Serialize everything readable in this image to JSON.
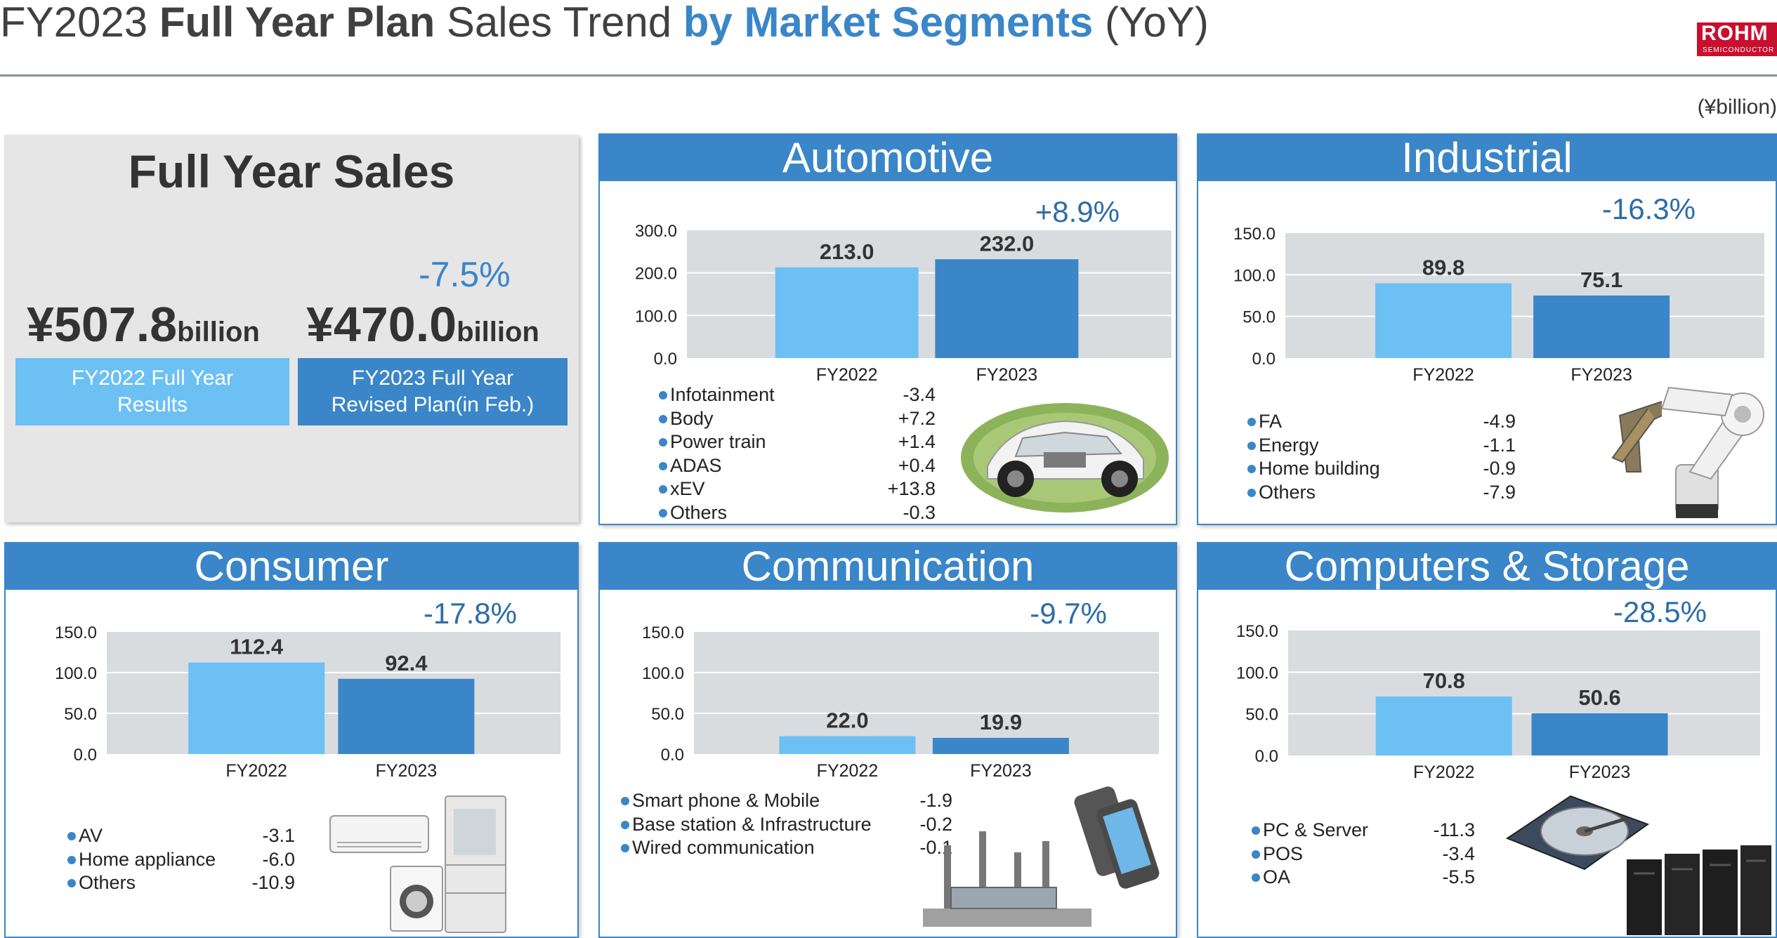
{
  "header": {
    "title_parts": [
      "FY2023 ",
      "Full Year Plan",
      " Sales Trend ",
      "by Market Segments",
      " (YoY)"
    ],
    "logo_line1": "ROHM",
    "logo_line2": "SEMICONDUCTOR"
  },
  "unit": "(¥billion)",
  "full_year": {
    "heading": "Full Year Sales",
    "yoy": "-7.5%",
    "fy2022_value": "¥507.8",
    "fy2023_value": "¥470.0",
    "value_unit": "billion",
    "fy2022_label": [
      "FY2022 Full Year",
      "Results"
    ],
    "fy2023_label": [
      "FY2023 Full Year",
      "Revised Plan(in Feb.)"
    ],
    "colors": {
      "fy2022": "#6cc0f4",
      "fy2023": "#3a86c8"
    }
  },
  "colors": {
    "fy2022": "#6cc0f4",
    "fy2023": "#3a86c8",
    "plot_bg": "#d9dcdf",
    "grid": "#ffffff"
  },
  "chart_data": [
    {
      "type": "bar",
      "title": "Automotive",
      "categories": [
        "FY2022",
        "FY2023"
      ],
      "values": [
        213.0,
        232.0
      ],
      "data_labels": [
        "213.0",
        "232.0"
      ],
      "yticks": [
        "0.0",
        "100.0",
        "200.0",
        "300.0"
      ],
      "ylim": [
        0,
        300
      ],
      "yoy": "+8.9%",
      "breakdown": [
        {
          "label": "Infotainment",
          "value": "-3.4"
        },
        {
          "label": "Body",
          "value": "+7.2"
        },
        {
          "label": "Power train",
          "value": "+1.4"
        },
        {
          "label": "ADAS",
          "value": "+0.4"
        },
        {
          "label": "xEV",
          "value": "+13.8"
        },
        {
          "label": "Others",
          "value": "-0.3"
        }
      ]
    },
    {
      "type": "bar",
      "title": "Industrial",
      "categories": [
        "FY2022",
        "FY2023"
      ],
      "values": [
        89.8,
        75.1
      ],
      "data_labels": [
        "89.8",
        "75.1"
      ],
      "yticks": [
        "0.0",
        "50.0",
        "100.0",
        "150.0"
      ],
      "ylim": [
        0,
        150
      ],
      "yoy": "-16.3%",
      "breakdown": [
        {
          "label": "FA",
          "value": "-4.9"
        },
        {
          "label": "Energy",
          "value": "-1.1"
        },
        {
          "label": "Home building",
          "value": "-0.9"
        },
        {
          "label": "Others",
          "value": "-7.9"
        }
      ]
    },
    {
      "type": "bar",
      "title": "Consumer",
      "categories": [
        "FY2022",
        "FY2023"
      ],
      "values": [
        112.4,
        92.4
      ],
      "data_labels": [
        "112.4",
        "92.4"
      ],
      "yticks": [
        "0.0",
        "50.0",
        "100.0",
        "150.0"
      ],
      "ylim": [
        0,
        150
      ],
      "yoy": "-17.8%",
      "breakdown": [
        {
          "label": "AV",
          "value": "-3.1"
        },
        {
          "label": "Home appliance",
          "value": "-6.0"
        },
        {
          "label": "Others",
          "value": "-10.9"
        }
      ]
    },
    {
      "type": "bar",
      "title": "Communication",
      "categories": [
        "FY2022",
        "FY2023"
      ],
      "values": [
        22.0,
        19.9
      ],
      "data_labels": [
        "22.0",
        "19.9"
      ],
      "yticks": [
        "0.0",
        "50.0",
        "100.0",
        "150.0"
      ],
      "ylim": [
        0,
        150
      ],
      "yoy": "-9.7%",
      "breakdown": [
        {
          "label": "Smart phone & Mobile",
          "value": "-1.9"
        },
        {
          "label": "Base station & Infrastructure",
          "value": "-0.2"
        },
        {
          "label": "Wired communication",
          "value": "-0.1"
        }
      ]
    },
    {
      "type": "bar",
      "title": "Computers & Storage",
      "categories": [
        "FY2022",
        "FY2023"
      ],
      "values": [
        70.8,
        50.6
      ],
      "data_labels": [
        "70.8",
        "50.6"
      ],
      "yticks": [
        "0.0",
        "50.0",
        "100.0",
        "150.0"
      ],
      "ylim": [
        0,
        150
      ],
      "yoy": "-28.5%",
      "breakdown": [
        {
          "label": "PC & Server",
          "value": "-11.3"
        },
        {
          "label": "POS",
          "value": "-3.4"
        },
        {
          "label": "OA",
          "value": "-5.5"
        }
      ]
    }
  ]
}
